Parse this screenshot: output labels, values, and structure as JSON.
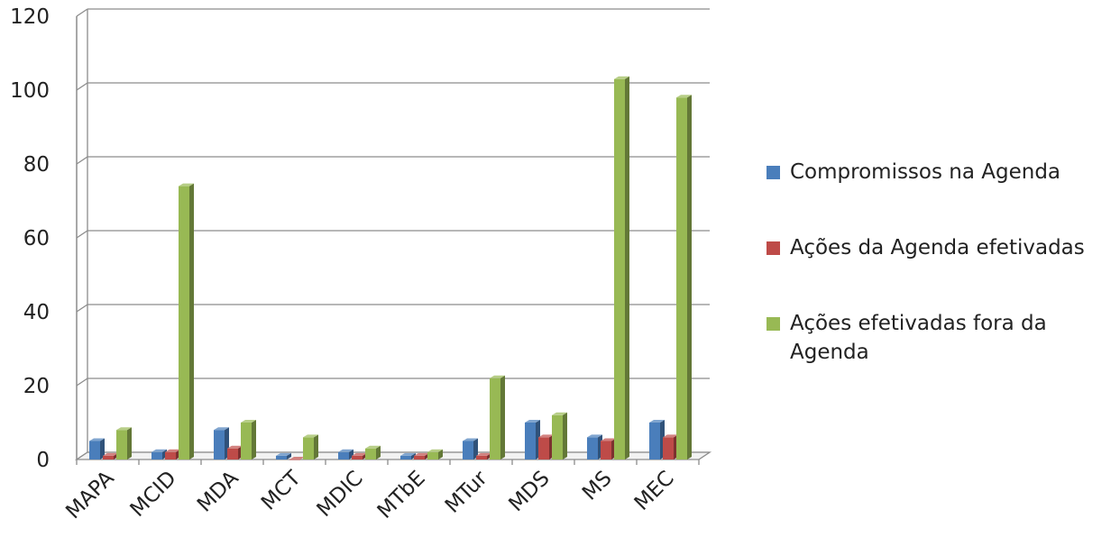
{
  "chart_data": {
    "type": "bar",
    "style": "3d-clustered",
    "categories": [
      "MAPA",
      "MCID",
      "MDA",
      "MCT",
      "MDIC",
      "MTbE",
      "MTur",
      "MDS",
      "MS",
      "MEC"
    ],
    "series": [
      {
        "name": "Compromissos na Agenda",
        "color": "#4A7EBB",
        "values": [
          5,
          2,
          8,
          1,
          2,
          1,
          5,
          10,
          6,
          10
        ]
      },
      {
        "name": "Ações da Agenda efetivadas",
        "color": "#BE4B48",
        "values": [
          1,
          2,
          3,
          0,
          1,
          1,
          1,
          6,
          5,
          6
        ]
      },
      {
        "name": "Ações efetivadas fora da Agenda",
        "color": "#98B954",
        "values": [
          8,
          74,
          10,
          6,
          3,
          2,
          22,
          12,
          103,
          98
        ]
      }
    ],
    "ylim": [
      0,
      120
    ],
    "yticks": [
      0,
      20,
      40,
      60,
      80,
      100,
      120
    ],
    "grid": true,
    "legend_position": "right"
  }
}
